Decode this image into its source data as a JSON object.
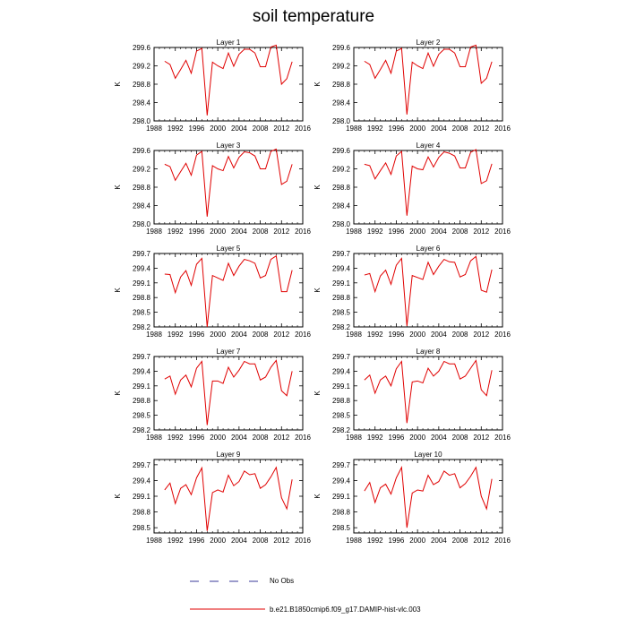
{
  "title": "soil temperature",
  "ylabel": "K",
  "legend": {
    "no_obs_label": "No Obs",
    "run_label": "b.e21.B1850cmip6.f09_g17.DAMIP-hist-vlc.003",
    "no_obs_color": "#3a3a9a",
    "run_color": "#e00000"
  },
  "chart_data": [
    {
      "type": "line",
      "title": "Layer 1",
      "xlim": [
        1988,
        2016
      ],
      "xticks": [
        1988,
        1992,
        1996,
        2000,
        2004,
        2008,
        2012,
        2016
      ],
      "ylim": [
        298.0,
        299.6
      ],
      "yticks": [
        "298.0",
        "298.4",
        "298.8",
        "299.2",
        "299.6"
      ],
      "series": [
        {
          "values": [
            299.3,
            299.23,
            298.93,
            299.12,
            299.32,
            299.04,
            299.52,
            299.58,
            298.12,
            299.28,
            299.2,
            299.14,
            299.48,
            299.19,
            299.45,
            299.56,
            299.56,
            299.48,
            299.18,
            299.18,
            299.61,
            299.65,
            298.8,
            298.92,
            299.29
          ]
        }
      ]
    },
    {
      "type": "line",
      "title": "Layer 2",
      "xlim": [
        1988,
        2016
      ],
      "xticks": [
        1988,
        1992,
        1996,
        2000,
        2004,
        2008,
        2012,
        2016
      ],
      "ylim": [
        298.0,
        299.6
      ],
      "yticks": [
        "298.0",
        "298.4",
        "298.8",
        "299.2",
        "299.6"
      ],
      "series": [
        {
          "values": [
            299.3,
            299.23,
            298.93,
            299.12,
            299.32,
            299.04,
            299.52,
            299.58,
            298.14,
            299.28,
            299.2,
            299.14,
            299.48,
            299.19,
            299.45,
            299.56,
            299.56,
            299.48,
            299.18,
            299.18,
            299.61,
            299.65,
            298.82,
            298.93,
            299.29
          ]
        }
      ]
    },
    {
      "type": "line",
      "title": "Layer 3",
      "xlim": [
        1988,
        2016
      ],
      "xticks": [
        1988,
        1992,
        1996,
        2000,
        2004,
        2008,
        2012,
        2016
      ],
      "ylim": [
        298.0,
        299.6
      ],
      "yticks": [
        "298.0",
        "298.4",
        "298.8",
        "299.2",
        "299.6"
      ],
      "series": [
        {
          "values": [
            299.3,
            299.25,
            298.95,
            299.14,
            299.32,
            299.06,
            299.5,
            299.58,
            298.16,
            299.27,
            299.2,
            299.16,
            299.47,
            299.22,
            299.45,
            299.57,
            299.55,
            299.48,
            299.2,
            299.2,
            299.58,
            299.63,
            298.86,
            298.93,
            299.3
          ]
        }
      ]
    },
    {
      "type": "line",
      "title": "Layer 4",
      "xlim": [
        1988,
        2016
      ],
      "xticks": [
        1988,
        1992,
        1996,
        2000,
        2004,
        2008,
        2012,
        2016
      ],
      "ylim": [
        298.0,
        299.6
      ],
      "yticks": [
        "298.0",
        "298.4",
        "298.8",
        "299.2",
        "299.6"
      ],
      "series": [
        {
          "values": [
            299.3,
            299.27,
            298.98,
            299.16,
            299.33,
            299.08,
            299.48,
            299.58,
            298.18,
            299.26,
            299.2,
            299.18,
            299.46,
            299.24,
            299.45,
            299.57,
            299.54,
            299.48,
            299.22,
            299.22,
            299.56,
            299.62,
            298.88,
            298.94,
            299.31
          ]
        }
      ]
    },
    {
      "type": "line",
      "title": "Layer 5",
      "xlim": [
        1988,
        2016
      ],
      "xticks": [
        1988,
        1992,
        1996,
        2000,
        2004,
        2008,
        2012,
        2016
      ],
      "ylim": [
        298.2,
        299.7
      ],
      "yticks": [
        "298.2",
        "298.5",
        "298.8",
        "299.1",
        "299.4",
        "299.7"
      ],
      "series": [
        {
          "values": [
            299.28,
            299.27,
            298.9,
            299.22,
            299.35,
            299.05,
            299.48,
            299.6,
            298.2,
            299.25,
            299.2,
            299.15,
            299.5,
            299.25,
            299.44,
            299.58,
            299.55,
            299.5,
            299.2,
            299.25,
            299.58,
            299.65,
            298.92,
            298.92,
            299.36
          ]
        }
      ]
    },
    {
      "type": "line",
      "title": "Layer 6",
      "xlim": [
        1988,
        2016
      ],
      "xticks": [
        1988,
        1992,
        1996,
        2000,
        2004,
        2008,
        2012,
        2016
      ],
      "ylim": [
        298.2,
        299.7
      ],
      "yticks": [
        "298.2",
        "298.5",
        "298.8",
        "299.1",
        "299.4",
        "299.7"
      ],
      "series": [
        {
          "values": [
            299.26,
            299.29,
            298.92,
            299.24,
            299.36,
            299.07,
            299.46,
            299.6,
            298.22,
            299.25,
            299.21,
            299.17,
            299.52,
            299.27,
            299.44,
            299.58,
            299.53,
            299.52,
            299.22,
            299.27,
            299.55,
            299.64,
            298.95,
            298.91,
            299.37
          ]
        }
      ]
    },
    {
      "type": "line",
      "title": "Layer 7",
      "xlim": [
        1988,
        2016
      ],
      "xticks": [
        1988,
        1992,
        1996,
        2000,
        2004,
        2008,
        2012,
        2016
      ],
      "ylim": [
        298.2,
        299.7
      ],
      "yticks": [
        "298.2",
        "298.5",
        "298.8",
        "299.1",
        "299.4",
        "299.7"
      ],
      "series": [
        {
          "values": [
            299.24,
            299.3,
            298.93,
            299.22,
            299.32,
            299.08,
            299.46,
            299.6,
            298.3,
            299.2,
            299.2,
            299.15,
            299.48,
            299.28,
            299.42,
            299.6,
            299.55,
            299.55,
            299.22,
            299.28,
            299.48,
            299.62,
            299.0,
            298.9,
            299.4
          ]
        }
      ]
    },
    {
      "type": "line",
      "title": "Layer 8",
      "xlim": [
        1988,
        2016
      ],
      "xticks": [
        1988,
        1992,
        1996,
        2000,
        2004,
        2008,
        2012,
        2016
      ],
      "ylim": [
        298.2,
        299.7
      ],
      "yticks": [
        "298.2",
        "298.5",
        "298.8",
        "299.1",
        "299.4",
        "299.7"
      ],
      "series": [
        {
          "values": [
            299.22,
            299.32,
            298.95,
            299.22,
            299.3,
            299.1,
            299.45,
            299.6,
            298.34,
            299.18,
            299.2,
            299.16,
            299.46,
            299.3,
            299.4,
            299.6,
            299.55,
            299.55,
            299.24,
            299.3,
            299.46,
            299.62,
            299.02,
            298.9,
            299.42
          ]
        }
      ]
    },
    {
      "type": "line",
      "title": "Layer 9",
      "xlim": [
        1988,
        2016
      ],
      "xticks": [
        1988,
        1992,
        1996,
        2000,
        2004,
        2008,
        2012,
        2016
      ],
      "ylim": [
        298.4,
        299.8
      ],
      "yticks": [
        "298.5",
        "298.8",
        "299.1",
        "299.4",
        "299.7"
      ],
      "series": [
        {
          "values": [
            299.22,
            299.35,
            298.96,
            299.25,
            299.32,
            299.13,
            299.45,
            299.64,
            298.44,
            299.17,
            299.22,
            299.18,
            299.5,
            299.3,
            299.38,
            299.58,
            299.51,
            299.53,
            299.25,
            299.32,
            299.47,
            299.65,
            299.07,
            298.86,
            299.42
          ]
        }
      ]
    },
    {
      "type": "line",
      "title": "Layer 10",
      "xlim": [
        1988,
        2016
      ],
      "xticks": [
        1988,
        1992,
        1996,
        2000,
        2004,
        2008,
        2012,
        2016
      ],
      "ylim": [
        298.4,
        299.8
      ],
      "yticks": [
        "298.5",
        "298.8",
        "299.1",
        "299.4",
        "299.7"
      ],
      "series": [
        {
          "values": [
            299.2,
            299.36,
            298.98,
            299.26,
            299.33,
            299.14,
            299.45,
            299.65,
            298.5,
            299.16,
            299.22,
            299.2,
            299.5,
            299.32,
            299.38,
            299.58,
            299.5,
            299.53,
            299.26,
            299.34,
            299.48,
            299.65,
            299.1,
            298.86,
            299.43
          ]
        }
      ]
    }
  ]
}
